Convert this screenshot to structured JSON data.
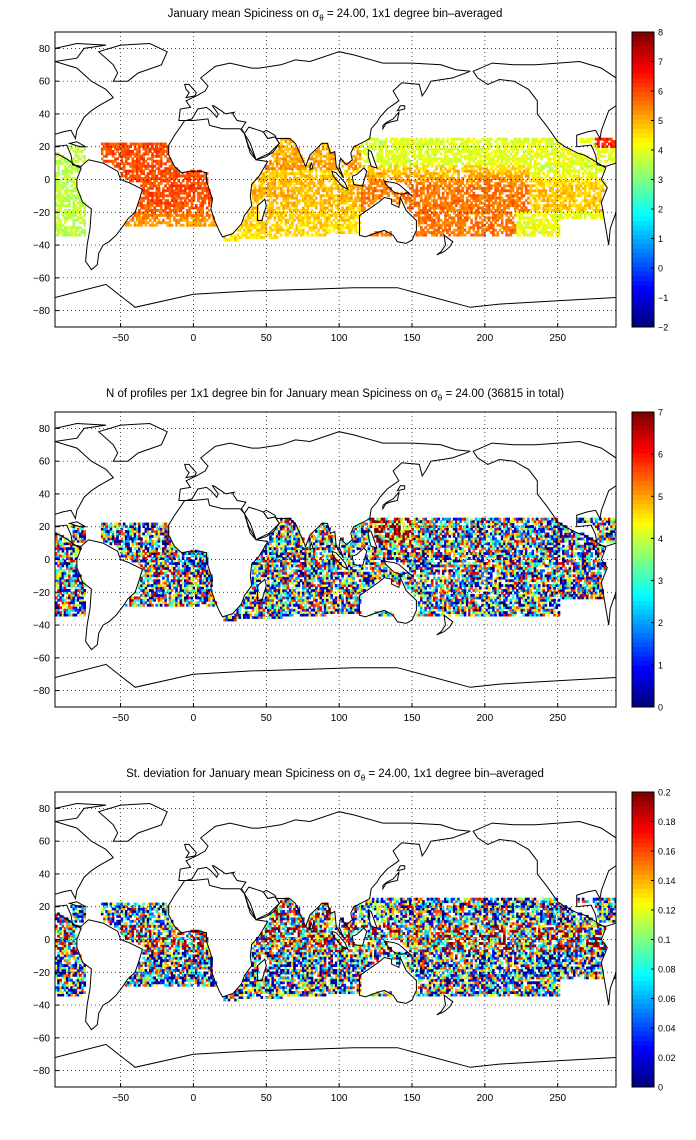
{
  "panels": [
    {
      "title_pre": "January mean Spiciness on σ",
      "title_sub": "θ",
      "title_post": " = 24.00, 1x1 degree bin–averaged",
      "xticks": [
        "−50",
        "0",
        "50",
        "100",
        "150",
        "200",
        "250"
      ],
      "yticks": [
        "80",
        "60",
        "40",
        "20",
        "0",
        "−20",
        "−40",
        "−60",
        "−80"
      ],
      "colorbar": {
        "min": -2,
        "max": 8,
        "labels": [
          "8",
          "7",
          "6",
          "5",
          "4",
          "3",
          "2",
          "1",
          "0",
          "−1",
          "−2"
        ]
      },
      "field": "mean_spiciness"
    },
    {
      "title_pre": "N of profiles per 1x1 degree bin for January mean Spiciness on σ",
      "title_sub": "θ",
      "title_post": " = 24.00 (36815 in total)",
      "xticks": [
        "−50",
        "0",
        "50",
        "100",
        "150",
        "200",
        "250"
      ],
      "yticks": [
        "80",
        "60",
        "40",
        "20",
        "0",
        "−20",
        "−40",
        "−60",
        "−80"
      ],
      "colorbar": {
        "min": 0,
        "max": 7,
        "labels": [
          "7",
          "6",
          "5",
          "4",
          "3",
          "2",
          "1",
          "0"
        ]
      },
      "field": "profile_count"
    },
    {
      "title_pre": "St. deviation for January mean Spiciness on σ",
      "title_sub": "θ",
      "title_post": " = 24.00, 1x1 degree bin–averaged",
      "xticks": [
        "−50",
        "0",
        "50",
        "100",
        "150",
        "200",
        "250"
      ],
      "yticks": [
        "80",
        "60",
        "40",
        "20",
        "0",
        "−20",
        "−40",
        "−60",
        "−80"
      ],
      "colorbar": {
        "min": 0,
        "max": 0.2,
        "labels": [
          "0.2",
          "0.18",
          "0.16",
          "0.14",
          "0.12",
          "0.1",
          "0.08",
          "0.06",
          "0.04",
          "0.02",
          "0"
        ]
      },
      "field": "std_spiciness"
    }
  ],
  "map_extent": {
    "lon": [
      -95,
      290
    ],
    "lat": [
      -90,
      90
    ]
  },
  "colormap": "jet"
}
